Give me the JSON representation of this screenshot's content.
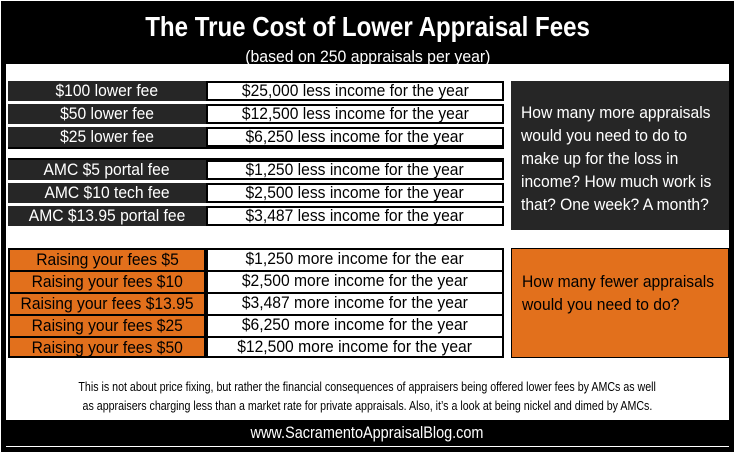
{
  "colors": {
    "orange": "#E2701C",
    "dark": "#262626",
    "black": "#000000"
  },
  "header": {
    "title": "The True Cost of Lower Appraisal Fees",
    "subtitle": "(based on 250 appraisals per year)"
  },
  "notes": {
    "loss": "How many more appraisals would you need to do to make up for the loss in income? How much work is that? One week? A month?",
    "gain": "How many fewer appraisals would you need to do?"
  },
  "disclaimer": {
    "line1": "This is not about price fixing, but rather the financial consequences of appraisers being offered lower fees by AMCs as well",
    "line2": "as appraisers charging less than a market rate for private appraisals. Also, it’s a look at being nickel and dimed by AMCs."
  },
  "footer": {
    "url": "www.SacramentoAppraisalBlog.com"
  },
  "chart_data": {
    "type": "table",
    "title": "The True Cost of Lower Appraisal Fees",
    "subtitle": "(based on 250 appraisals per year)",
    "assumption_appraisals_per_year": 250,
    "groups": [
      {
        "name": "lower-fee-loss",
        "rows": [
          {
            "label": "$100 lower fee",
            "value": "$25,000 less income for the year",
            "income_change": -25000
          },
          {
            "label": "$50 lower fee",
            "value": "$12,500 less income for the year",
            "income_change": -12500
          },
          {
            "label": "$25 lower fee",
            "value": "$6,250 less income for the year",
            "income_change": -6250
          }
        ]
      },
      {
        "name": "amc-fee-loss",
        "rows": [
          {
            "label": "AMC $5 portal fee",
            "value": "$1,250 less income for the year",
            "income_change": -1250
          },
          {
            "label": "AMC $10 tech fee",
            "value": "$2,500 less income for the year",
            "income_change": -2500
          },
          {
            "label": "AMC $13.95 portal fee",
            "value": "$3,487 less income for the year",
            "income_change": -3487
          }
        ]
      },
      {
        "name": "raise-fee-gain",
        "rows": [
          {
            "label": "Raising your fees $5",
            "value": "$1,250 more income for the ear",
            "income_change": 1250
          },
          {
            "label": "Raising your fees $10",
            "value": "$2,500 more income for the year",
            "income_change": 2500
          },
          {
            "label": "Raising your fees $13.95",
            "value": "$3,487 more income for the year",
            "income_change": 3487
          },
          {
            "label": "Raising your fees $25",
            "value": "$6,250 more income for the year",
            "income_change": 6250
          },
          {
            "label": "Raising your fees $50",
            "value": "$12,500 more income for the year",
            "income_change": 12500
          }
        ]
      }
    ]
  }
}
